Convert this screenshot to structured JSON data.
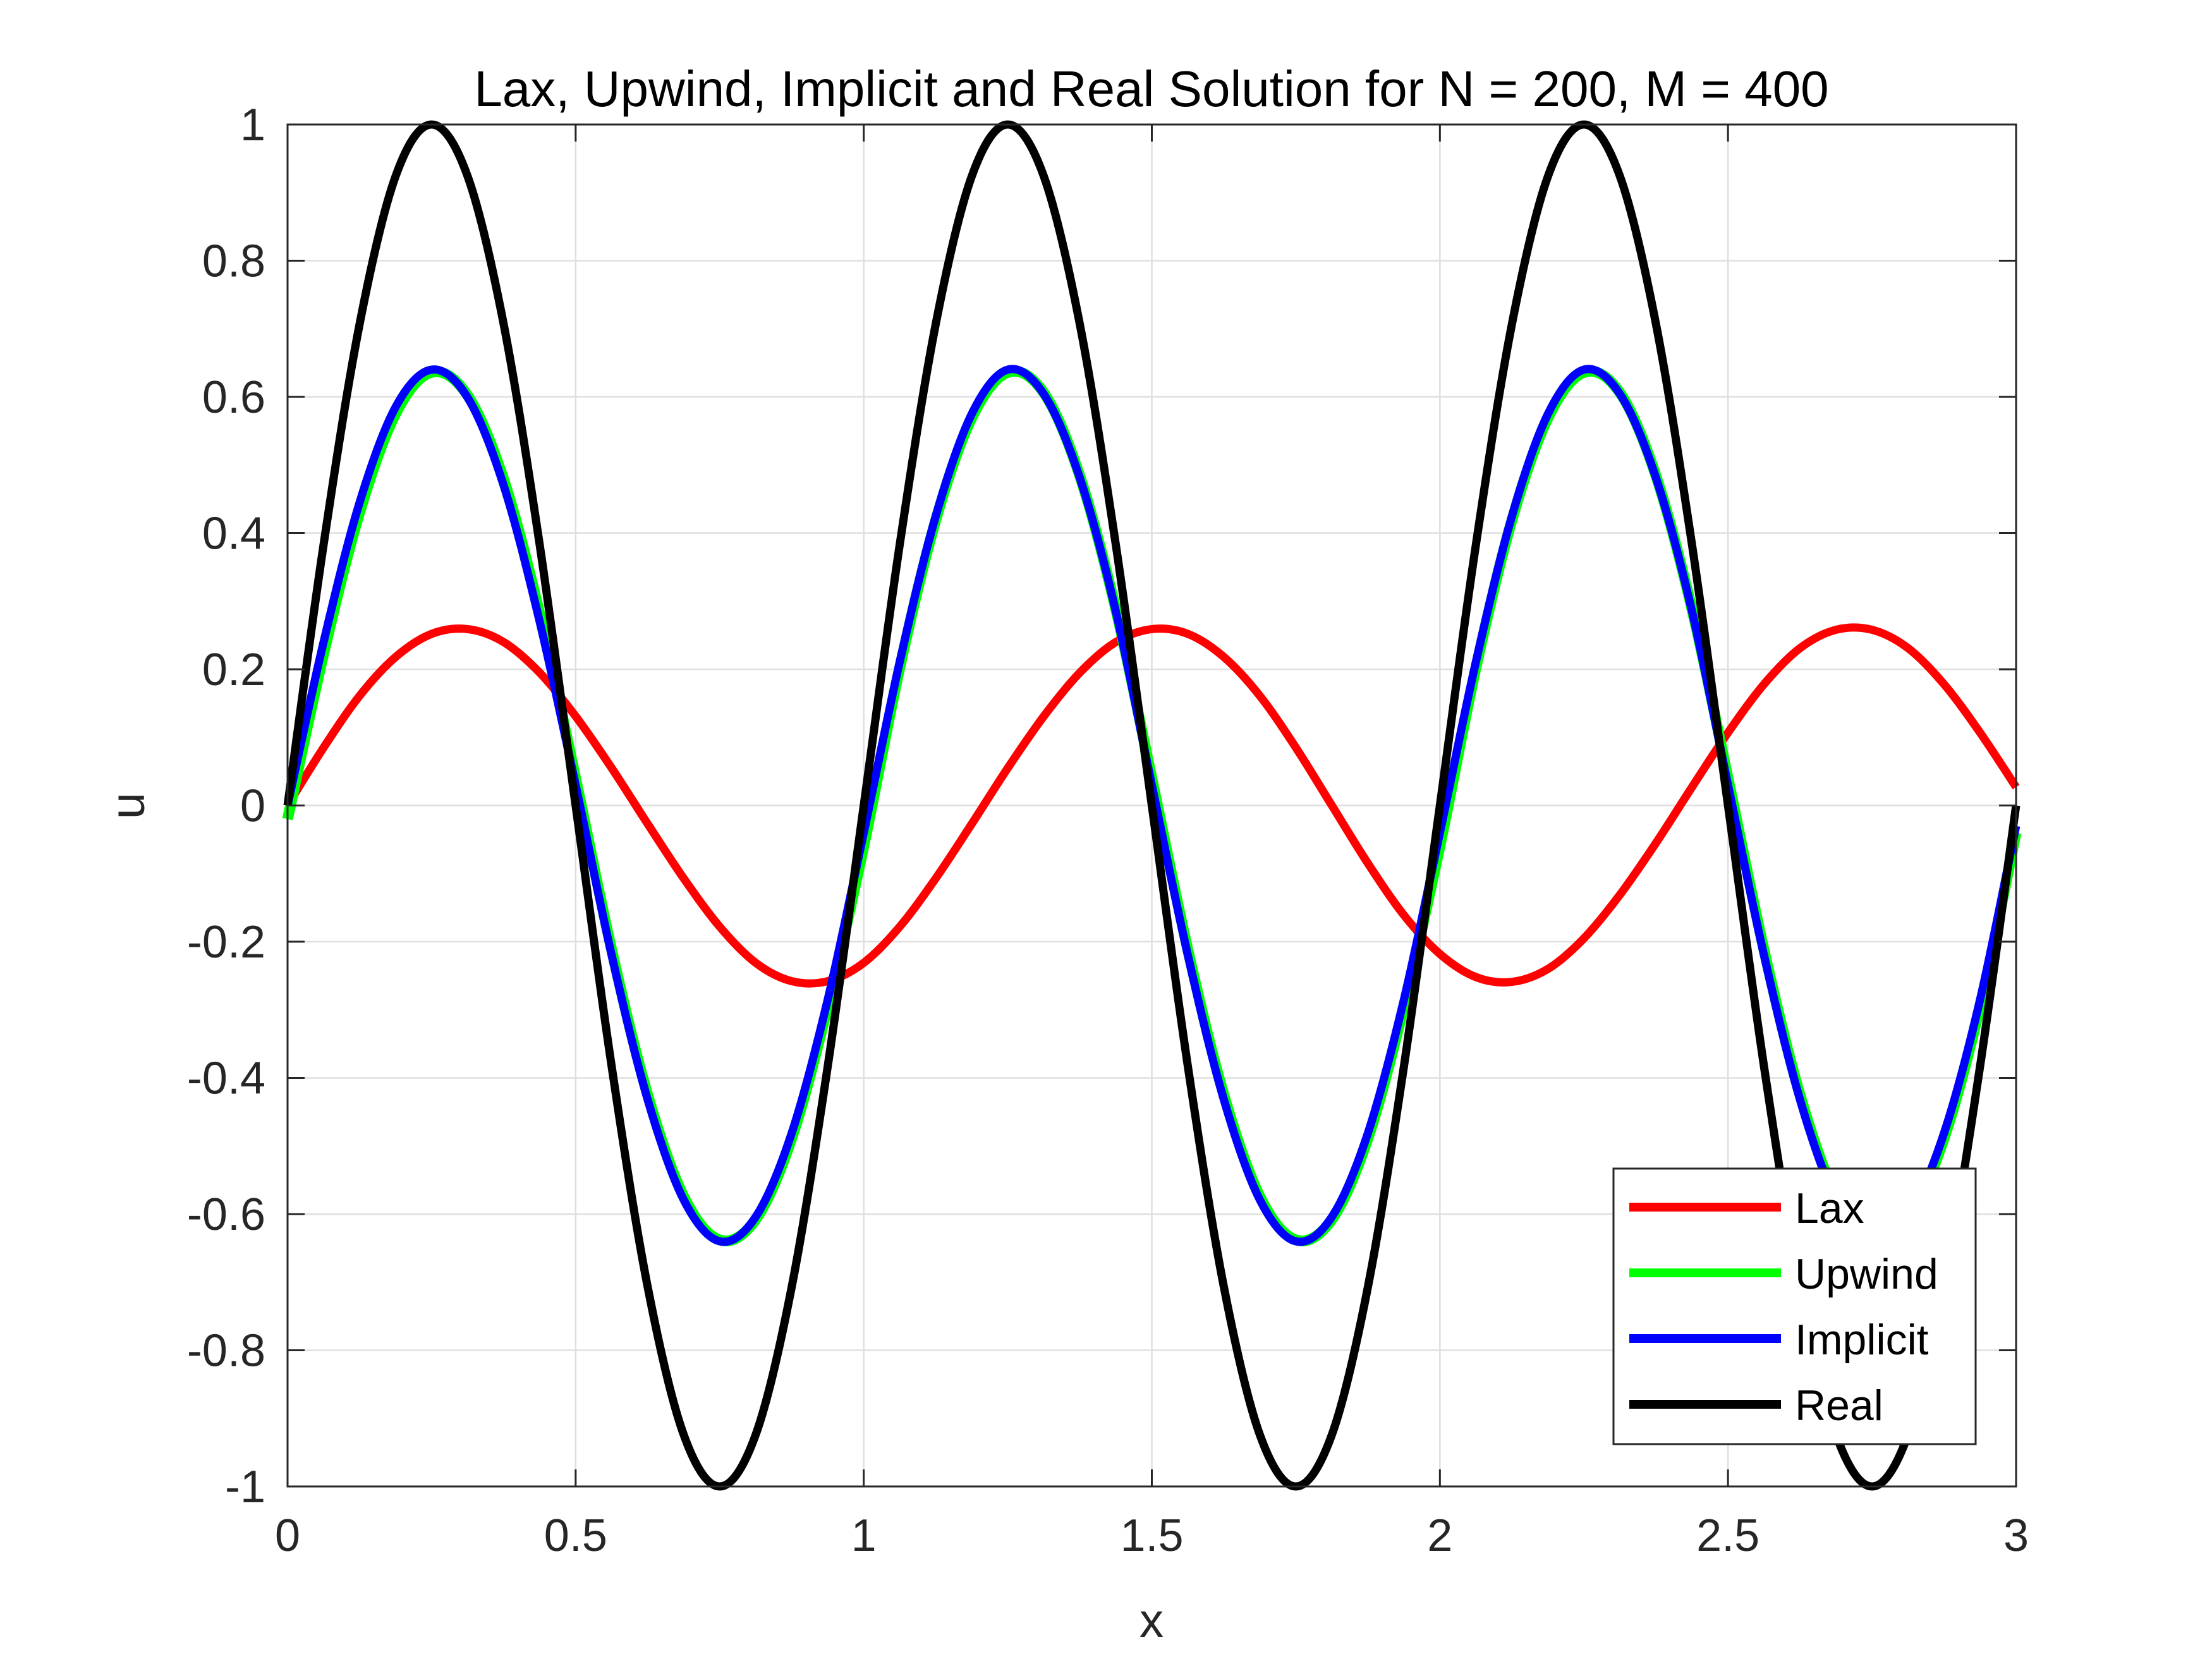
{
  "chart_data": {
    "type": "line",
    "title": "Lax, Upwind, Implicit and Real Solution for N = 200, M = 400",
    "xlabel": "x",
    "ylabel": "u",
    "xlim": [
      0,
      3
    ],
    "ylim": [
      -1,
      1
    ],
    "xticks": [
      0,
      0.5,
      1,
      1.5,
      2,
      2.5,
      3
    ],
    "xtick_labels": [
      "0",
      "0.5",
      "1",
      "1.5",
      "2",
      "2.5",
      "3"
    ],
    "yticks": [
      -1,
      -0.8,
      -0.6,
      -0.4,
      -0.2,
      0,
      0.2,
      0.4,
      0.6,
      0.8,
      1
    ],
    "ytick_labels": [
      "-1",
      "-0.8",
      "-0.6",
      "-0.4",
      "-0.2",
      "0",
      "0.2",
      "0.4",
      "0.6",
      "0.8",
      "1"
    ],
    "grid": true,
    "legend_position": "bottom-right",
    "x": [
      0,
      0.0625,
      0.125,
      0.1875,
      0.25,
      0.3125,
      0.375,
      0.4375,
      0.5,
      0.5625,
      0.625,
      0.6875,
      0.75,
      0.8125,
      0.875,
      0.9375,
      1,
      1.0625,
      1.125,
      1.1875,
      1.25,
      1.3125,
      1.375,
      1.4375,
      1.5,
      1.5625,
      1.625,
      1.6875,
      1.75,
      1.8125,
      1.875,
      1.9375,
      2,
      2.0625,
      2.125,
      2.1875,
      2.25,
      2.3125,
      2.375,
      2.4375,
      2.5,
      2.5625,
      2.625,
      2.6875,
      2.75,
      2.8125,
      2.875,
      2.9375,
      3
    ],
    "series": [
      {
        "name": "Lax",
        "color": "#ff0000",
        "values": [
          0.0,
          0.085,
          0.161,
          0.218,
          0.252,
          0.259,
          0.24,
          0.195,
          0.131,
          0.055,
          -0.027,
          -0.107,
          -0.178,
          -0.231,
          -0.258,
          -0.258,
          -0.231,
          -0.178,
          -0.107,
          -0.027,
          0.055,
          0.131,
          0.195,
          0.24,
          0.259,
          0.252,
          0.218,
          0.161,
          0.085,
          0.0,
          -0.085,
          -0.161,
          -0.218,
          -0.252,
          -0.259,
          -0.24,
          -0.195,
          -0.131,
          -0.055,
          0.027,
          0.107,
          0.178,
          0.231,
          0.258,
          0.258,
          0.231,
          0.178,
          0.107,
          0.027
        ]
      },
      {
        "name": "Upwind",
        "color": "#00ff00",
        "values": [
          -0.02,
          0.222,
          0.43,
          0.575,
          0.636,
          0.602,
          0.479,
          0.282,
          0.04,
          -0.212,
          -0.425,
          -0.574,
          -0.638,
          -0.608,
          -0.489,
          -0.295,
          -0.06,
          0.202,
          0.419,
          0.569,
          0.636,
          0.606,
          0.484,
          0.288,
          0.04,
          -0.212,
          -0.425,
          -0.574,
          -0.638,
          -0.608,
          -0.489,
          -0.295,
          -0.06,
          0.202,
          0.419,
          0.569,
          0.636,
          0.606,
          0.484,
          0.288,
          0.04,
          -0.212,
          -0.425,
          -0.574,
          -0.638,
          -0.608,
          -0.489,
          -0.295,
          -0.04
        ]
      },
      {
        "name": "Implicit",
        "color": "#0000ff",
        "values": [
          0.0,
          0.24,
          0.445,
          0.585,
          0.64,
          0.599,
          0.47,
          0.27,
          0.03,
          -0.22,
          -0.432,
          -0.579,
          -0.64,
          -0.604,
          -0.481,
          -0.285,
          -0.04,
          0.211,
          0.425,
          0.575,
          0.64,
          0.604,
          0.481,
          0.285,
          0.03,
          -0.22,
          -0.432,
          -0.579,
          -0.64,
          -0.604,
          -0.481,
          -0.285,
          -0.04,
          0.211,
          0.425,
          0.575,
          0.64,
          0.604,
          0.481,
          0.285,
          0.03,
          -0.22,
          -0.432,
          -0.579,
          -0.64,
          -0.604,
          -0.481,
          -0.285,
          -0.03
        ]
      },
      {
        "name": "Real",
        "color": "#000000",
        "values": [
          0.0,
          0.383,
          0.707,
          0.924,
          1.0,
          0.924,
          0.707,
          0.383,
          0.0,
          -0.383,
          -0.707,
          -0.924,
          -1.0,
          -0.924,
          -0.707,
          -0.383,
          0.0,
          0.383,
          0.707,
          0.924,
          1.0,
          0.924,
          0.707,
          0.383,
          0.0,
          -0.383,
          -0.707,
          -0.924,
          -1.0,
          -0.924,
          -0.707,
          -0.383,
          0.0,
          0.383,
          0.707,
          0.924,
          1.0,
          0.924,
          0.707,
          0.383,
          0.0,
          -0.383,
          -0.707,
          -0.924,
          -1.0,
          -0.924,
          -0.707,
          -0.383,
          0.0
        ]
      }
    ]
  }
}
